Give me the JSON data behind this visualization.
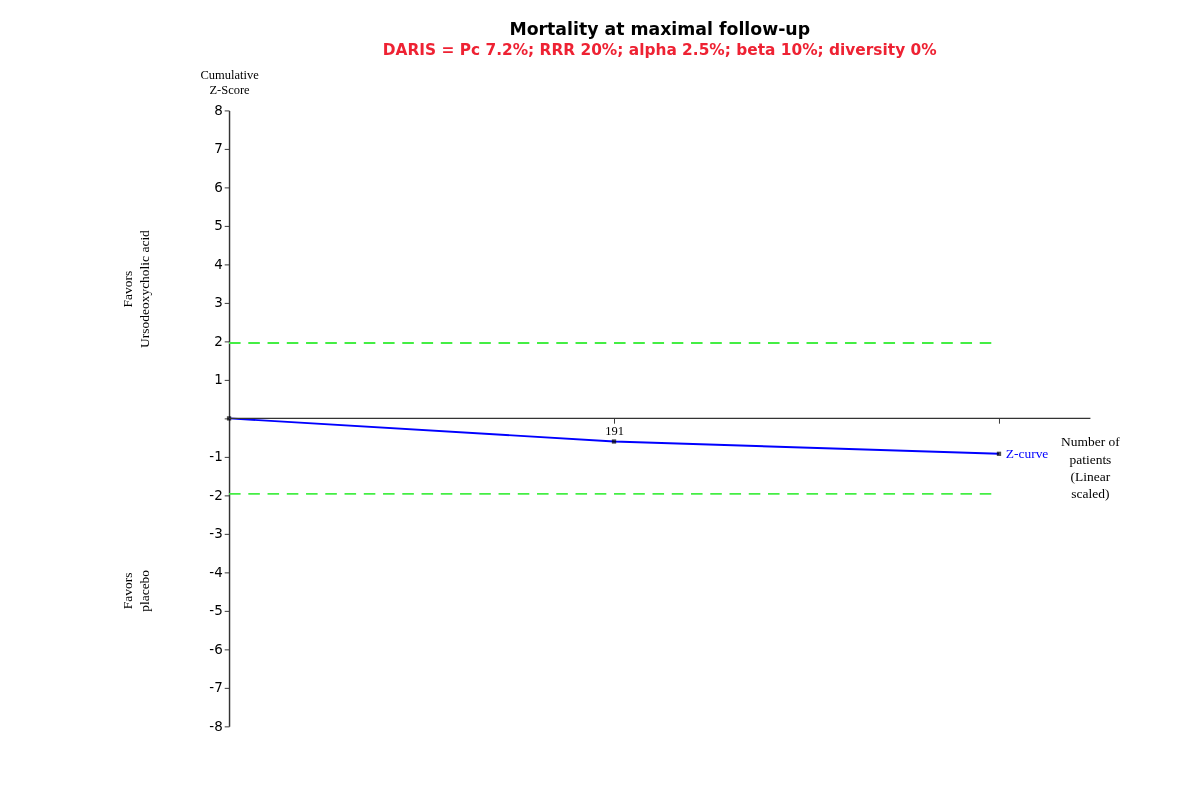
{
  "chart_data": {
    "type": "line",
    "title": "Mortality at maximal follow-up",
    "subtitle": "DARIS = Pc 7.2%; RRR 20%; alpha 2.5%; beta 10%; diversity 0%",
    "xlabel": "Number of patients (Linear scaled)",
    "ylabel": "Cumulative Z-Score",
    "categories": [
      null,
      "191",
      null
    ],
    "series": [
      {
        "name": "Z-curve",
        "color": "#0000ff",
        "values": [
          0,
          -0.6,
          -0.92
        ]
      }
    ],
    "ylim": [
      -8,
      8
    ],
    "yticks": [
      -8,
      -7,
      -6,
      -5,
      -4,
      -3,
      -2,
      -1,
      {
        "value": 0,
        "label": null
      },
      1,
      2,
      3,
      4,
      5,
      6,
      7,
      8
    ],
    "ref_lines": [
      {
        "axis": "y",
        "value": 1.96,
        "label": null,
        "color": "#44ee44",
        "line_style": "dashed"
      },
      {
        "axis": "y",
        "value": -1.96,
        "label": null,
        "color": "#44ee44",
        "line_style": "dashed"
      }
    ],
    "annotations": [
      "Favors Ursodeoxycholic acid",
      "Favors placebo"
    ],
    "marker": "square",
    "line_style": "solid",
    "grid": false
  }
}
